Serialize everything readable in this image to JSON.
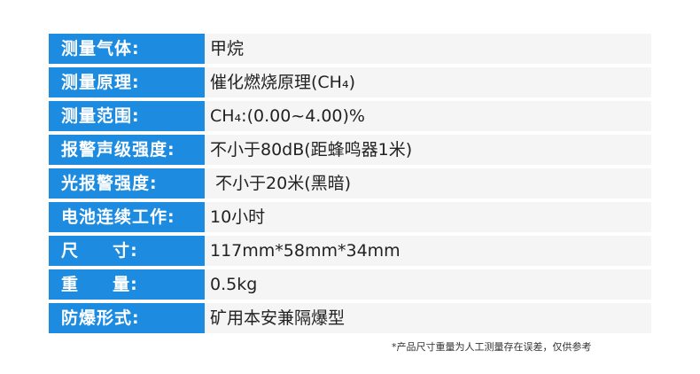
{
  "specs": [
    {
      "label": "测量气体:",
      "value": "甲烷"
    },
    {
      "label": "测量原理:",
      "value": "催化燃烧原理(CH₄)"
    },
    {
      "label": "测量范围:",
      "value": "CH₄:(0.00~4.00)%"
    },
    {
      "label": "报警声级强度:",
      "value": "不小于80dB(距蜂鸣器1米)"
    },
    {
      "label": "光报警强度:",
      "value": " 不小于20米(黑暗)"
    },
    {
      "label": "电池连续工作:",
      "value": "10小时"
    },
    {
      "label": "尺     寸:",
      "value": "117mm*58mm*34mm"
    },
    {
      "label": "重     量:",
      "value": "0.5kg"
    },
    {
      "label": "防爆形式:",
      "value": "矿用本安兼隔爆型"
    }
  ],
  "note": "*产品尺寸重量为人工测量存在误差，仅供参考",
  "colors": {
    "label_bg": "#1c8be0",
    "row_bg": "#f5f5f5"
  }
}
